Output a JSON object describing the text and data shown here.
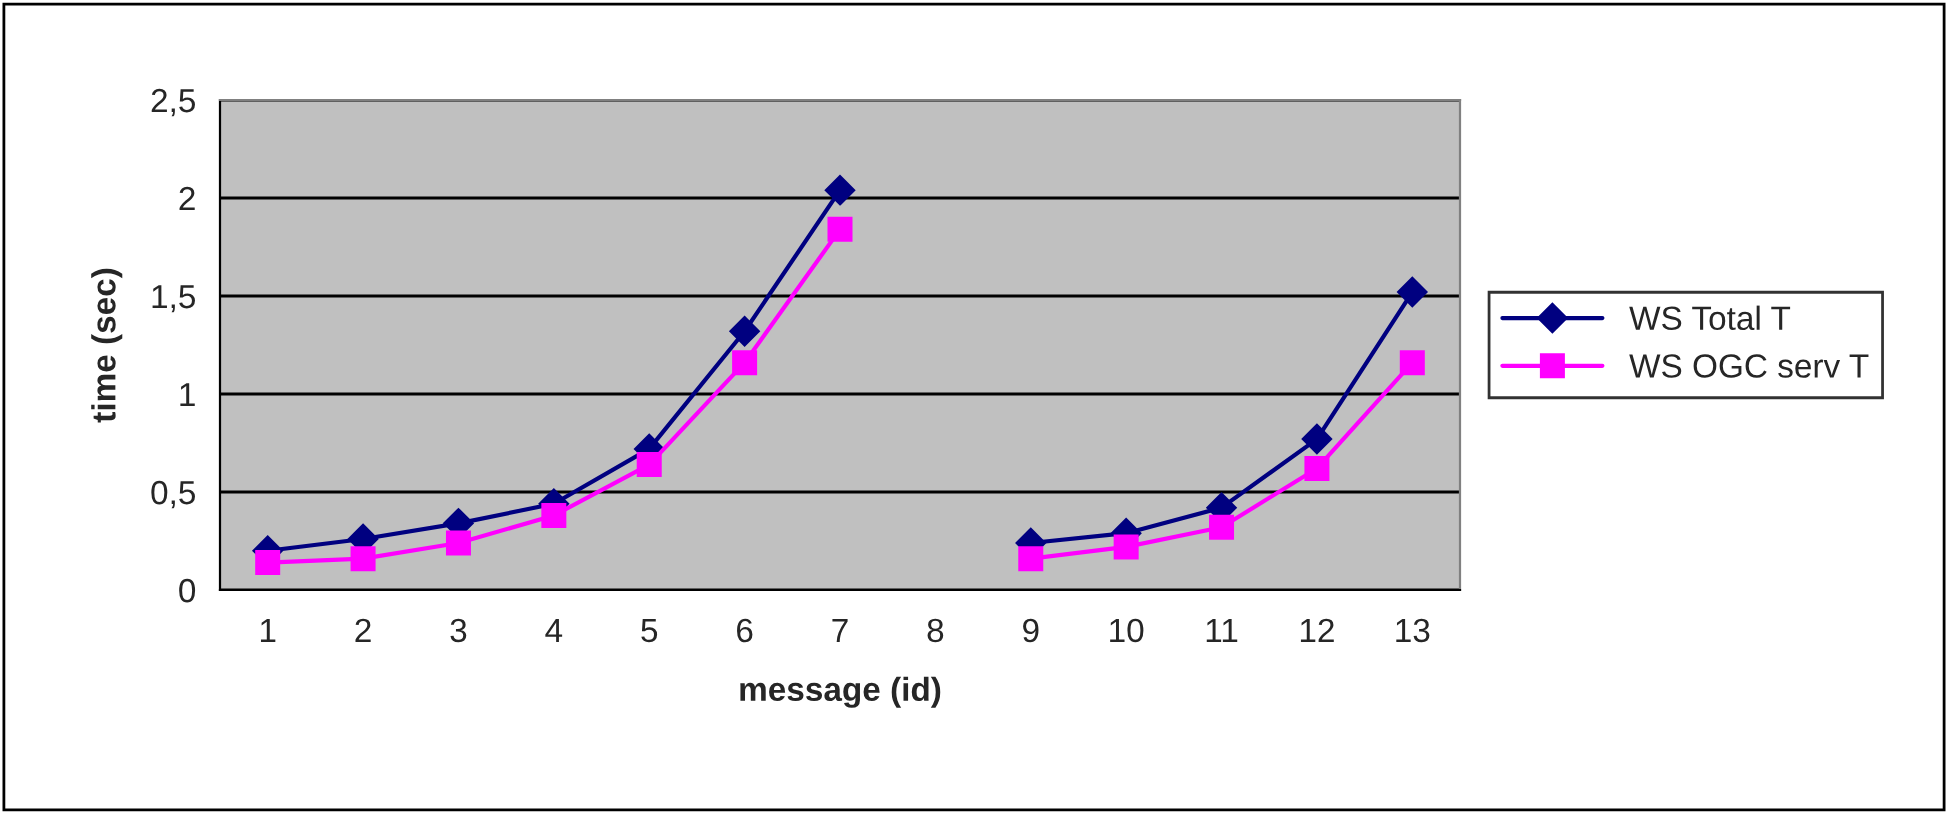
{
  "chart_data": {
    "type": "line",
    "xlabel": "message (id)",
    "ylabel": "time (sec)",
    "categories": [
      "1",
      "2",
      "3",
      "4",
      "5",
      "6",
      "7",
      "8",
      "9",
      "10",
      "11",
      "12",
      "13"
    ],
    "series": [
      {
        "name": "WS Total T",
        "color": "#000080",
        "marker": "diamond",
        "values": [
          0.2,
          0.26,
          0.34,
          0.44,
          0.72,
          1.32,
          2.04,
          null,
          0.24,
          0.29,
          0.42,
          0.77,
          1.52
        ]
      },
      {
        "name": "WS OGC serv T",
        "color": "#ff00ff",
        "marker": "square",
        "values": [
          0.14,
          0.16,
          0.24,
          0.38,
          0.64,
          1.16,
          1.84,
          null,
          0.16,
          0.22,
          0.32,
          0.62,
          1.16
        ]
      }
    ],
    "ylim": [
      0,
      2.5
    ],
    "yticks": [
      0,
      {
        "value": 0.5,
        "label": "0,5"
      },
      1,
      {
        "value": 1.5,
        "label": "1,5"
      },
      2,
      {
        "value": 2.5,
        "label": "2,5"
      }
    ],
    "grid": "y",
    "legend": "right",
    "line_style": "solid"
  }
}
